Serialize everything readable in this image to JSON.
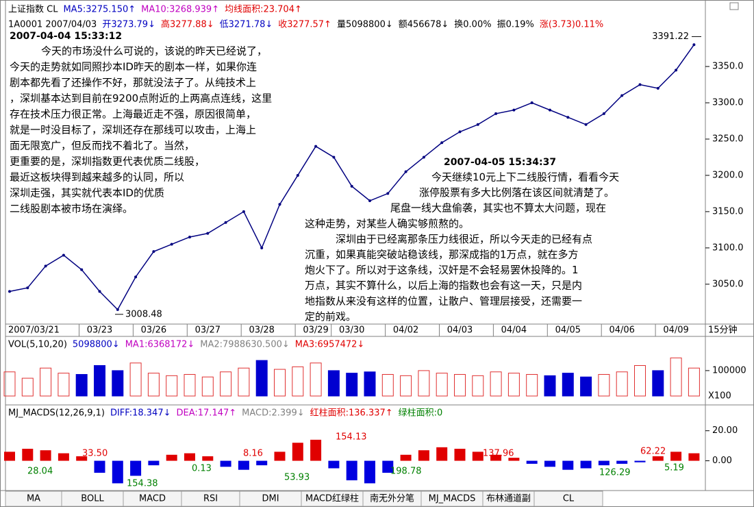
{
  "header": {
    "line1": [
      "上证指数 CL",
      "MA5:3275.150↑",
      "MA10:3268.939↑",
      "均线面积:23.704↑"
    ],
    "line2": [
      "1A0001 2007/04/03",
      "开3273.79↓",
      "高3277.88↓",
      "低3271.78↓",
      "收3277.57↑",
      "量5098800↓",
      "额456678↓",
      "换0.00%",
      "振0.19%",
      "涨(3.73)0.11%"
    ]
  },
  "chart_data": [
    {
      "type": "line",
      "color": "#000080",
      "ylim": [
        2996,
        3402
      ],
      "yticks": [
        {
          "value": 3050,
          "label": "3050.0"
        },
        {
          "value": 3100,
          "label": "3100.0"
        },
        {
          "value": 3150,
          "label": "3150.0"
        },
        {
          "value": 3200,
          "label": "3200.0"
        },
        {
          "value": 3250,
          "label": "3250.0"
        },
        {
          "value": 3300,
          "label": "3300.0"
        },
        {
          "value": 3350,
          "label": "3350.0"
        }
      ],
      "categories": [
        "2007/03/21",
        null,
        null,
        null,
        null,
        "03/23",
        null,
        null,
        "03/26",
        null,
        null,
        "03/27",
        null,
        null,
        "03/28",
        null,
        null,
        "03/29",
        null,
        "03/30",
        null,
        null,
        "04/02",
        null,
        null,
        "04/03",
        null,
        null,
        "04/04",
        null,
        null,
        "04/05",
        null,
        null,
        "04/06",
        null,
        null,
        "04/09",
        null
      ],
      "values": [
        3040,
        3045,
        3075,
        3090,
        3070,
        3040,
        3015,
        3060,
        3095,
        3105,
        3115,
        3120,
        3135,
        3150,
        3100,
        3160,
        3200,
        3240,
        3225,
        3185,
        3165,
        3175,
        3205,
        3225,
        3245,
        3260,
        3270,
        3285,
        3290,
        3300,
        3290,
        3280,
        3270,
        3285,
        3310,
        3325,
        3320,
        3345,
        3380
      ],
      "high": 3391.22,
      "low": 3008.48,
      "period": "15分钟"
    },
    {
      "type": "bar",
      "title": [
        "VOL(5,10,20)",
        "5098800↓",
        "MA1:6368172↓",
        "MA2:7988630.500↓",
        "MA3:6957472↓"
      ],
      "ylim": [
        0,
        178000
      ],
      "yticks": [
        100000
      ],
      "unit": "X100",
      "up_color": "#e03030",
      "down_color": "#0000d0",
      "values": [
        95000,
        70000,
        110000,
        90000,
        85000,
        120000,
        100000,
        130000,
        90000,
        80000,
        85000,
        75000,
        95000,
        110000,
        140000,
        105000,
        115000,
        130000,
        100000,
        90000,
        95000,
        85000,
        80000,
        100000,
        90000,
        85000,
        80000,
        95000,
        90000,
        85000,
        80000,
        90000,
        75000,
        85000,
        95000,
        120000,
        100000,
        150000,
        110000
      ]
    },
    {
      "type": "bar",
      "title": [
        "MJ_MACDS(12,26,9,1)",
        "DIFF:18.347↓",
        "DEA:17.147↑",
        "MACD:2.399↓",
        "红柱面积:136.337↑",
        "绿柱面积:0"
      ],
      "ylim": [
        -18,
        34
      ],
      "yticks": [
        {
          "value": 0,
          "label": "0.00"
        },
        {
          "value": 20,
          "label": "20.00"
        }
      ],
      "up_color": "#e00000",
      "down_color": "#0000e0",
      "values": [
        6,
        8,
        7,
        5,
        3,
        -8,
        -15,
        -10,
        -3,
        4,
        5,
        3,
        -4,
        -6,
        -3,
        6,
        12,
        14,
        -5,
        -13,
        -15,
        -8,
        4,
        7,
        9,
        8,
        6,
        4,
        2,
        -2,
        -4,
        -6,
        -5,
        -3,
        -2,
        -1,
        3,
        6,
        5
      ],
      "area_labels": [
        {
          "value": 33.5,
          "label": "33.50"
        },
        {
          "value": 28.04,
          "label": "28.04"
        },
        {
          "value": 154.38,
          "label": "154.38"
        },
        {
          "value": 0.13,
          "label": "0.13"
        },
        {
          "value": 8.16,
          "label": "8.16"
        },
        {
          "value": 53.93,
          "label": "53.93"
        },
        {
          "value": 154.13,
          "label": "154.13"
        },
        {
          "value": 198.78,
          "label": "198.78"
        },
        {
          "value": 137.96,
          "label": "137.96"
        },
        {
          "value": 126.29,
          "label": "126.29"
        },
        {
          "value": 62.22,
          "label": "62.22"
        },
        {
          "value": 5.19,
          "label": "5.19"
        }
      ]
    }
  ],
  "annotations": [
    {
      "timestamp": "2007-04-04 15:33:12",
      "lines": [
        "今天的市场没什么可说的，该说的昨天已经说了，",
        "今天的走势就如同照抄本ID昨天的剧本一样，如果你连",
        "剧本都先看了还操作不好，那就没法子了。从纯技术上",
        "，深圳基本达到目前在9200点附近的上两高点连线，这里",
        "存在技术压力很正常。上海最近走不强，原因很简单，",
        "就是一时没目标了，深圳还存在那线可以攻击，上海上",
        "面无限宽广，但反而找不着北了。当然，",
        "更重要的是，深圳指数更代表优质二线股，",
        "最近这板块得到越来越多的认同，所以",
        "深圳走强，其实就代表本ID的优质",
        "二线股剧本被市场在演绎。"
      ]
    },
    {
      "timestamp": "2007-04-05 15:34:37",
      "lines": [
        "今天继续10元上下二线股行情，看看今天",
        "涨停股票有多大比例落在该区间就清楚了。",
        "尾盘一线大盘偷袭，其实也不算太大问题，现在",
        "这种走势，对某些人确实够煎熬的。",
        "深圳由于已经离那条压力线很近，所以今天走的已经有点",
        "沉重，如果真能突破站稳该线，那深成指的1万点，就在多方",
        "炮火下了。所以对于这条线，汉奸是不会轻易罢休投降的。1",
        "万点，其实不算什么，以后上海的指数也会有这一天，只是内",
        "地指数从来没有这样的位置，让散户、管理层接受，还需要一",
        "定的前戏。"
      ]
    }
  ],
  "tabs": [
    "MA",
    "BOLL",
    "MACD",
    "RSI",
    "DMI",
    "MACD红绿柱",
    "南无外分笔",
    "MJ_MACDS",
    "布林通道副",
    "CL"
  ]
}
